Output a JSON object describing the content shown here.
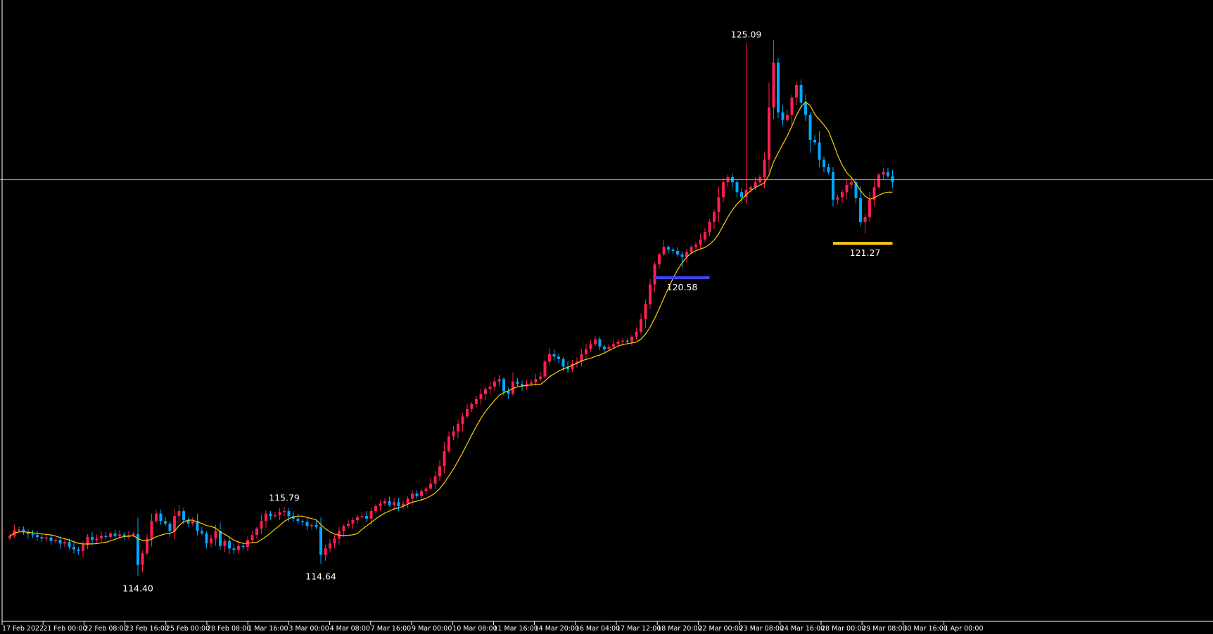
{
  "chart_data": {
    "type": "candlestick",
    "title": "",
    "xlabel": "",
    "ylabel": "",
    "ylim": [
      113.6,
      125.9
    ],
    "grid": false,
    "colors": {
      "background": "#000000",
      "bull": "#ff1e50",
      "bear": "#00a8ff",
      "ma_line": "#ffd000",
      "axis": "#ffffff",
      "horizontal_line": "#8aa6c2",
      "marker_low1": "#4040ff",
      "marker_low2": "#ffd000"
    },
    "x_tick_labels": [
      "17 Feb 2022",
      "21 Feb 00:00",
      "22 Feb 08:00",
      "23 Feb 16:00",
      "25 Feb 00:00",
      "28 Feb 08:00",
      "1 Mar 16:00",
      "3 Mar 00:00",
      "4 Mar 08:00",
      "7 Mar 16:00",
      "9 Mar 00:00",
      "10 Mar 08:00",
      "11 Mar 16:00",
      "14 Mar 20:00",
      "16 Mar 04:00",
      "17 Mar 12:00",
      "18 Mar 20:00",
      "22 Mar 00:00",
      "23 Mar 08:00",
      "24 Mar 16:00",
      "28 Mar 00:00",
      "29 Mar 08:00",
      "30 Mar 16:00",
      "1 Apr 00:00"
    ],
    "horizontal_line": 122.35,
    "annotations": [
      {
        "text": "125.09",
        "index": 161,
        "value": 125.09,
        "kind": "high"
      },
      {
        "text": "115.79",
        "index": 60,
        "value": 115.79,
        "kind": "high"
      },
      {
        "text": "114.40",
        "index": 28,
        "value": 114.4,
        "kind": "low"
      },
      {
        "text": "114.64",
        "index": 68,
        "value": 114.64,
        "kind": "low"
      },
      {
        "text": "120.58",
        "index": 147,
        "value": 120.58,
        "kind": "low",
        "marker": "marker_low1",
        "marker_from": 141,
        "marker_to": 153
      },
      {
        "text": "121.27",
        "index": 187,
        "value": 121.27,
        "kind": "low",
        "marker": "marker_low2",
        "marker_from": 180,
        "marker_to": 193
      }
    ],
    "close": [
      115.2,
      115.32,
      115.33,
      115.28,
      115.24,
      115.22,
      115.18,
      115.15,
      115.17,
      115.1,
      115.12,
      115.05,
      115.08,
      114.98,
      114.93,
      114.9,
      115.02,
      115.18,
      115.12,
      115.15,
      115.2,
      115.18,
      115.25,
      115.2,
      115.23,
      115.2,
      115.22,
      115.24,
      114.62,
      114.85,
      115.15,
      115.5,
      115.65,
      115.5,
      115.45,
      115.3,
      115.6,
      115.7,
      115.52,
      115.45,
      115.5,
      115.3,
      115.25,
      115.05,
      115.15,
      115.3,
      115.0,
      115.1,
      114.95,
      114.92,
      115.0,
      114.98,
      115.12,
      115.22,
      115.35,
      115.5,
      115.65,
      115.6,
      115.62,
      115.68,
      115.7,
      115.6,
      115.55,
      115.5,
      115.48,
      115.4,
      115.42,
      115.38,
      114.82,
      114.95,
      115.05,
      115.15,
      115.3,
      115.4,
      115.45,
      115.52,
      115.58,
      115.6,
      115.55,
      115.7,
      115.8,
      115.85,
      115.9,
      115.82,
      115.88,
      115.8,
      115.85,
      115.95,
      116.05,
      116.0,
      116.1,
      116.15,
      116.25,
      116.4,
      116.6,
      116.9,
      117.2,
      117.3,
      117.45,
      117.6,
      117.75,
      117.85,
      117.95,
      118.05,
      118.15,
      118.2,
      118.3,
      118.35,
      118.1,
      118.05,
      118.3,
      118.25,
      118.2,
      118.25,
      118.28,
      118.35,
      118.4,
      118.7,
      118.85,
      118.8,
      118.75,
      118.6,
      118.55,
      118.65,
      118.7,
      118.85,
      118.95,
      119.05,
      119.15,
      119.0,
      118.95,
      119.0,
      119.05,
      119.1,
      119.12,
      119.1,
      119.2,
      119.3,
      119.55,
      119.85,
      120.25,
      120.65,
      120.85,
      121.0,
      120.95,
      120.92,
      120.85,
      120.8,
      120.9,
      121.0,
      121.05,
      121.15,
      121.3,
      121.5,
      121.7,
      122.0,
      122.3,
      122.4,
      122.3,
      122.1,
      122.0,
      122.15,
      122.2,
      122.3,
      122.4,
      122.75,
      123.8,
      124.7,
      123.7,
      123.55,
      123.65,
      124.0,
      124.25,
      123.9,
      123.65,
      123.15,
      123.1,
      122.75,
      122.6,
      122.5,
      121.95,
      122.0,
      122.1,
      122.25,
      122.3,
      121.98,
      121.5,
      121.6,
      121.95,
      122.2,
      122.45,
      122.5,
      122.42,
      122.3
    ]
  }
}
